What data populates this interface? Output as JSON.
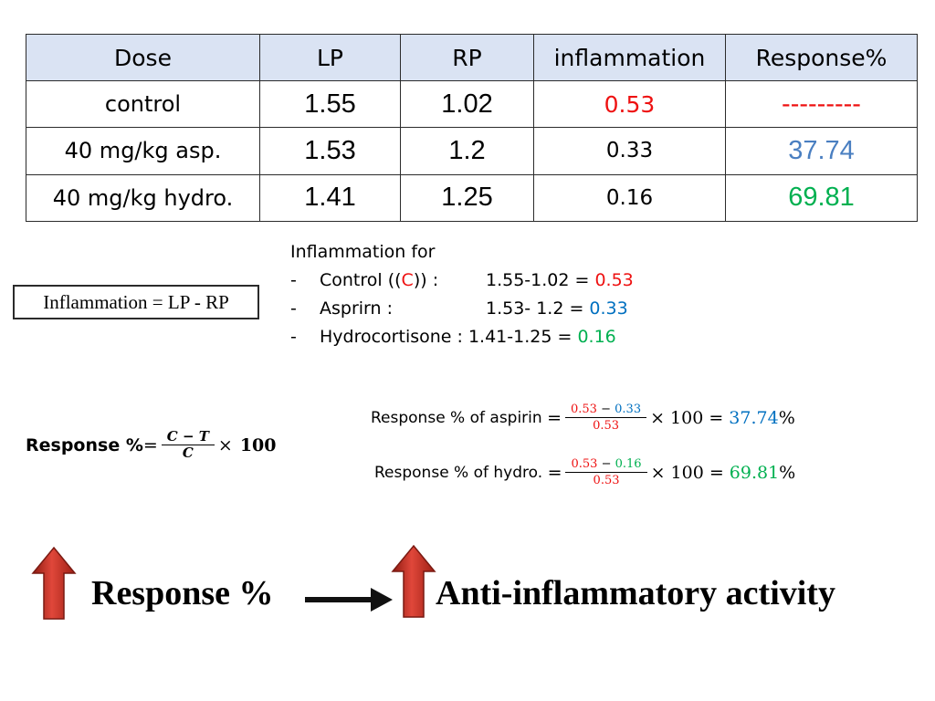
{
  "table": {
    "headers": [
      "Dose",
      "LP",
      "RP",
      "inflammation",
      "Response%"
    ],
    "rows": [
      {
        "dose": "control",
        "lp": "1.55",
        "rp": "1.02",
        "inflammation": "0.53",
        "response": "---------"
      },
      {
        "dose": "40 mg/kg asp.",
        "lp": "1.53",
        "rp": "1.2",
        "inflammation": "0.33",
        "response": "37.74"
      },
      {
        "dose": "40 mg/kg hydro.",
        "lp": "1.41",
        "rp": "1.25",
        "inflammation": "0.16",
        "response": "69.81"
      }
    ]
  },
  "formula_box": "Inflammation = LP - RP",
  "notes": {
    "title": "Inflammation for",
    "dash": "-",
    "control_pre": "Control ((",
    "control_c": "C",
    "control_post": ")) :",
    "control_calc": "1.55-1.02 = ",
    "control_val": "0.53",
    "aspirin_label": "Asprirn :",
    "aspirin_calc": "1.53- 1.2 = ",
    "aspirin_val": "0.33",
    "hydro_label": "Hydrocortisone : ",
    "hydro_calc": "1.41-1.25 = ",
    "hydro_val": "0.16"
  },
  "response_formula": {
    "label": "Response %",
    "eq": "=",
    "num": "C − T",
    "den": "C",
    "times": "×",
    "hundred": "100"
  },
  "aspirin_eq": {
    "label": "Response % of aspirin ",
    "eq": "=",
    "num_a": "0.53",
    "minus": "−",
    "num_b": "0.33",
    "den": "0.53",
    "tail": "× 100 =",
    "result": "37.74",
    "pct": "%"
  },
  "hydro_eq": {
    "label": "Response % of hydro. ",
    "eq": "=",
    "num_a": "0.53",
    "minus": "−",
    "num_b": "0.16",
    "den": "0.53",
    "tail": "× 100 =",
    "result": "69.81",
    "pct": "%"
  },
  "bottom": {
    "left_text": "Response %",
    "right_text": "Anti-inflammatory activity"
  },
  "colors": {
    "red": "#ee1111",
    "blue": "#0070c0",
    "green": "#00b050",
    "header_fill": "#dae3f3",
    "arrow_red": "#c0392b"
  }
}
